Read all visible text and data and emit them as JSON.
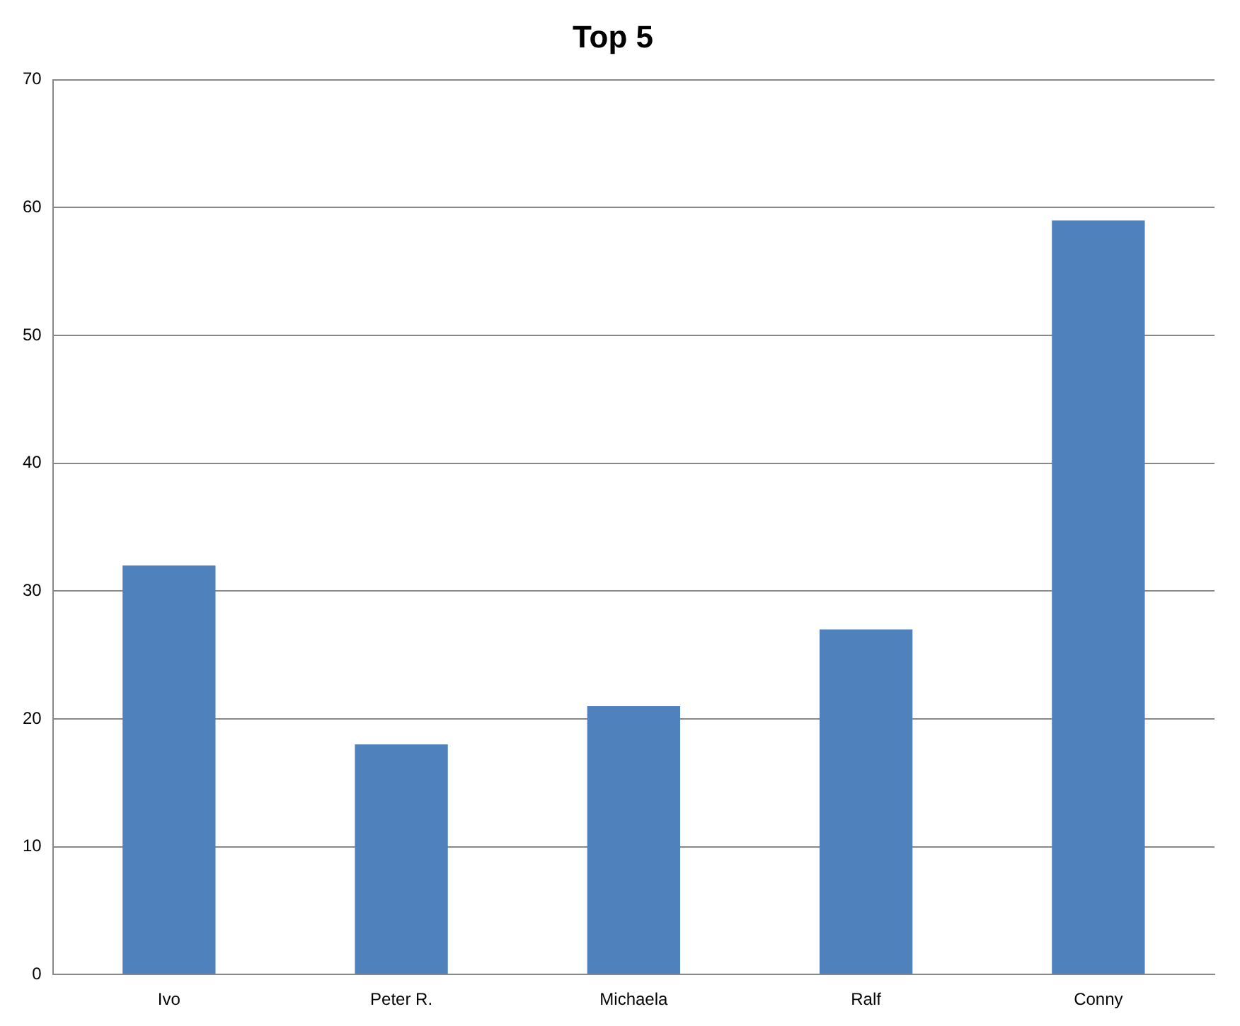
{
  "chart_data": {
    "type": "bar",
    "title": "Top 5",
    "categories": [
      "Ivo",
      "Peter R.",
      "Michaela",
      "Ralf",
      "Conny"
    ],
    "values": [
      32,
      18,
      21,
      27,
      59
    ],
    "color": "#4f81bd",
    "ylim": [
      0,
      70
    ],
    "yticks": [
      0,
      10,
      20,
      30,
      40,
      50,
      60,
      70
    ],
    "grid": "y",
    "legend": false
  }
}
